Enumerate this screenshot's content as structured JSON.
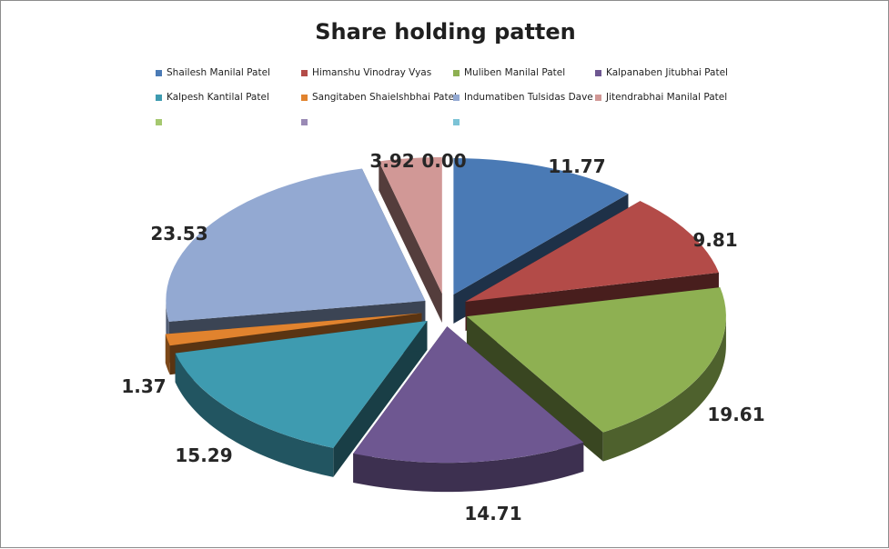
{
  "chart_data": {
    "type": "pie",
    "title": "Share holding patten",
    "legend_position": "top",
    "slices": [
      {
        "label": "Shailesh Manilal Patel",
        "value": 11.77,
        "value_label": "11.77",
        "color": "#4a7ab5"
      },
      {
        "label": "Himanshu Vinodray  Vyas",
        "value": 9.81,
        "value_label": "9.81",
        "color": "#b34b48"
      },
      {
        "label": "Muliben Manilal Patel",
        "value": 19.61,
        "value_label": "19.61",
        "color": "#8eb052"
      },
      {
        "label": "Kalpanaben Jitubhai Patel",
        "value": 14.71,
        "value_label": "14.71",
        "color": "#6e5791"
      },
      {
        "label": "Kalpesh Kantilal Patel",
        "value": 15.29,
        "value_label": "15.29",
        "color": "#3e9bb0"
      },
      {
        "label": "Sangitaben Shaielshbhai  Patel",
        "value": 1.37,
        "value_label": "1.37",
        "color": "#e1832e"
      },
      {
        "label": "Indumatiben  Tulsidas Dave",
        "value": 23.53,
        "value_label": "23.53",
        "color": "#93a9d2"
      },
      {
        "label": "Jitendrabhai  Manilal Patel",
        "value": 3.92,
        "value_label": "3.92",
        "color": "#d19896"
      },
      {
        "label": "",
        "value": 0.0,
        "value_label": "0.00",
        "color": "#a5c86f"
      },
      {
        "label": "",
        "value": 0.0,
        "value_label": "",
        "color": "#9a8ab5"
      },
      {
        "label": "",
        "value": 0.0,
        "value_label": "",
        "color": "#7cc3d6"
      }
    ]
  }
}
